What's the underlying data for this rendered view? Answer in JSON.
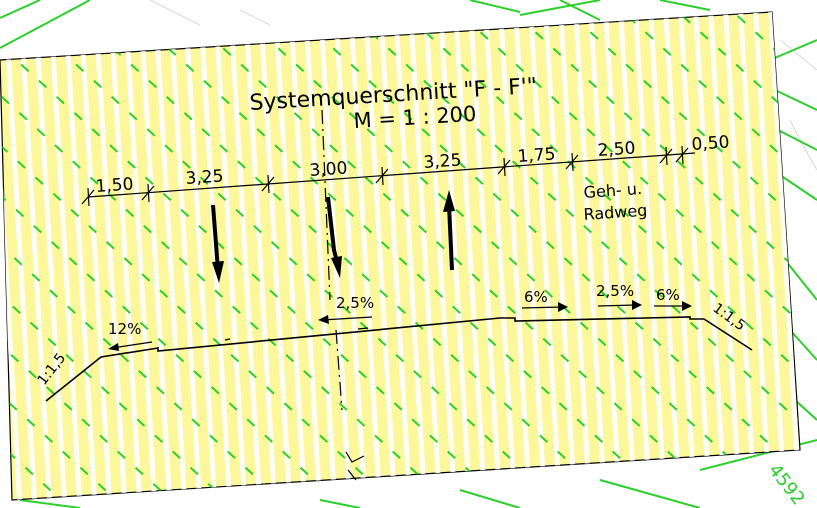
{
  "colors": {
    "paper": "#fbf79a",
    "hatch": "#ffffff",
    "green_lines": "#2ccf2c",
    "ink": "#000000"
  },
  "drawing": {
    "title": "Systemquerschnitt \"F - F'\"",
    "scale": "M = 1 : 200",
    "dimensions": [
      "1,50",
      "3,25",
      "3,00",
      "3,25",
      "1,75",
      "2,50",
      "0,50"
    ],
    "path_label_line1": "Geh- u.",
    "path_label_line2": "Radweg",
    "slopes": {
      "left_embankment": "1:1,5",
      "left_shoulder": "12%",
      "carriageway": "2,5%",
      "verge": "6%",
      "cycleway": "2,5%",
      "right_shoulder": "6%",
      "right_embankment": "1:1,5"
    },
    "background_number": "4592"
  }
}
